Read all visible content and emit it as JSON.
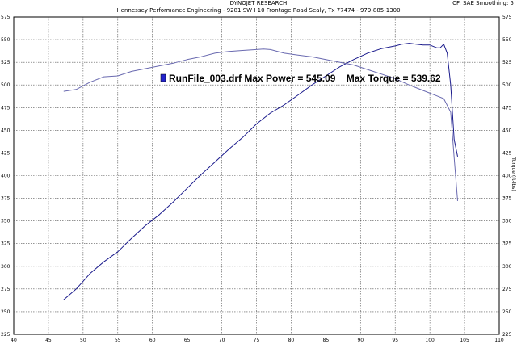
{
  "header": {
    "company": "DYNOJET RESEARCH",
    "address": "Hennessey Performance Engineering - 9281 SW I 10 Frontage Road Sealy, Tx 77474 - 979-885-1300",
    "correction": "CF: SAE Smoothing: 5"
  },
  "chart_data": {
    "type": "line",
    "legend_text": "RunFile_003.drf Max Power = 545.09    Max Torque = 539.62",
    "legend_color": "#2222cc",
    "right_axis_label": "Torque (ft-lbs)",
    "xlim": [
      40,
      110
    ],
    "ylim": [
      225,
      575
    ],
    "x_ticks": [
      40,
      45,
      50,
      55,
      60,
      65,
      70,
      75,
      80,
      85,
      90,
      95,
      100,
      105,
      110
    ],
    "y_ticks": [
      225,
      250,
      275,
      300,
      325,
      350,
      375,
      400,
      425,
      450,
      475,
      500,
      525,
      550,
      575
    ],
    "grid": true,
    "series": [
      {
        "color": "#1a1a8c",
        "x": [
          47.2,
          49,
          51,
          53,
          55,
          57,
          59,
          61,
          63,
          65,
          67,
          69,
          71,
          73,
          75,
          77,
          79,
          81,
          83,
          85,
          87,
          89,
          91,
          93,
          95,
          96,
          97,
          98,
          99,
          100,
          101,
          101.5,
          102,
          102.5,
          103,
          103.5,
          104
        ],
        "y": [
          263,
          275,
          292,
          305,
          316,
          331,
          345,
          357,
          371,
          386,
          401,
          415,
          429,
          442,
          457,
          469,
          478,
          489,
          500,
          510,
          520,
          528,
          535,
          540,
          543,
          545,
          546,
          545,
          544,
          544,
          541,
          541,
          545,
          535,
          500,
          440,
          421
        ]
      },
      {
        "color": "#6a6ab0",
        "x": [
          47.2,
          49,
          51,
          53,
          55,
          57,
          59,
          61,
          63,
          65,
          67,
          69,
          71,
          73,
          75,
          76,
          77,
          79,
          81,
          83,
          85,
          87,
          89,
          91,
          93,
          95,
          97,
          99,
          101,
          102,
          103,
          103.5,
          104
        ],
        "y": [
          493,
          495,
          503,
          509,
          510,
          515,
          518,
          521,
          524,
          528,
          531,
          535,
          537,
          538,
          539,
          539.6,
          539,
          535,
          533,
          531,
          528,
          525,
          522,
          517,
          512,
          507,
          500,
          494,
          488,
          485,
          470,
          420,
          372
        ]
      }
    ]
  }
}
